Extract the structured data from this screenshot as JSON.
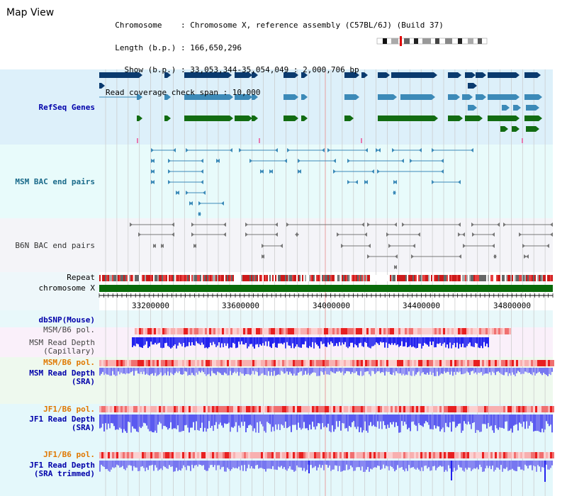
{
  "view": {
    "title": "Map View",
    "info_lines": [
      "  Chromosome    : Chromosome X, reference assembly (C57BL/6J) (Build 37)",
      "  Length (b.p.) : 166,650,296",
      "    Show (b.p.) : 33,053,344-35,054,049 : 2,000,706 bp",
      "Read coverage check span : 10,000"
    ]
  },
  "colors": {
    "refseq_bg": "#ddf0fa",
    "msm_bac_bg": "#e8fbfb",
    "b6n_bac_bg": "#f4f4f8",
    "pol_bg": "#faf0fa",
    "sra_bg": "#eef9ee",
    "jf1_bg": "#e4f8fb",
    "gene_dark": "#0a3a6e",
    "gene_mid": "#3c8ab8",
    "gene_green": "#126c12",
    "chrom_green": "#0a6a0a",
    "depth_blue": "#2222ee",
    "depth_light": "#7777f0",
    "label_blue": "#0000aa",
    "label_teal": "#1a6a8a",
    "label_orange": "#e07800",
    "vline": "#c8c8c8",
    "center_line": "#e8a0a0"
  },
  "tracks": {
    "refseq": "RefSeq Genes",
    "msm_bac": "MSM BAC end pairs",
    "b6n_bac": "B6N BAC end pairs",
    "repeat": "Repeat",
    "chromosome": "chromosome X",
    "dbsnp": "dbSNP(Mouse)",
    "msm_b6_pol": "MSM/B6 pol.",
    "msm_depth_cap": "MSM Read Depth\n(Capillary)",
    "msm_b6_pol2": "MSM/B6 pol.",
    "msm_depth_sra": "MSM Read Depth\n(SRA)",
    "jf1_b6_pol": "JF1/B6 pol.",
    "jf1_depth_sra": "JF1 Read Depth\n(SRA)",
    "jf1_b6_pol2": "JF1/B6 pol.",
    "jf1_depth_trim": "JF1 Read Depth\n(SRA trimmed)"
  },
  "axis": {
    "ticks": [
      "33200000",
      "33600000",
      "34000000",
      "34400000",
      "34800000"
    ]
  },
  "ideogram": {
    "icon": "chromosome-ideogram"
  }
}
